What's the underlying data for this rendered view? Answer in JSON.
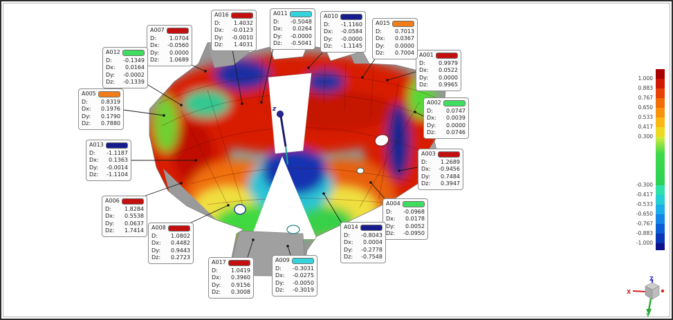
{
  "fields": {
    "d": "D:",
    "dx": "Dx:",
    "dy": "Dy:",
    "dz": "Dz:"
  },
  "swatch_colors": {
    "high_pos": "#c40f0f",
    "mid_pos": "#f07d1a",
    "in_tol": "#3fde5f",
    "mid_neg": "#35d3dc",
    "high_neg": "#161c8e"
  },
  "annotations": [
    {
      "id": "A001",
      "color": "#c40f0f",
      "d": "0.9979",
      "dx": "0.0522",
      "dy": "0.0000",
      "dz": "0.9965"
    },
    {
      "id": "A002",
      "color": "#3fde5f",
      "d": "0.0747",
      "dx": "0.0039",
      "dy": "0.0000",
      "dz": "0.0746"
    },
    {
      "id": "A003",
      "color": "#c40f0f",
      "d": "1.2689",
      "dx": "-0.9456",
      "dy": "0.7484",
      "dz": "0.3947"
    },
    {
      "id": "A004",
      "color": "#3fde5f",
      "d": "-0.0968",
      "dx": "0.0178",
      "dy": "0.0052",
      "dz": "-0.0950"
    },
    {
      "id": "A005",
      "color": "#f07d1a",
      "d": "0.8319",
      "dx": "0.1976",
      "dy": "0.1790",
      "dz": "0.7880"
    },
    {
      "id": "A006",
      "color": "#c40f0f",
      "d": "1.8284",
      "dx": "0.5538",
      "dy": "0.0637",
      "dz": "1.7414"
    },
    {
      "id": "A007",
      "color": "#c40f0f",
      "d": "1.0704",
      "dx": "-0.0560",
      "dy": "0.0000",
      "dz": "1.0689"
    },
    {
      "id": "A008",
      "color": "#c40f0f",
      "d": "1.0802",
      "dx": "0.4482",
      "dy": "0.9443",
      "dz": "0.2723"
    },
    {
      "id": "A009",
      "color": "#35d3dc",
      "d": "-0.3031",
      "dx": "-0.0275",
      "dy": "-0.0050",
      "dz": "-0.3019"
    },
    {
      "id": "A010",
      "color": "#161c8e",
      "d": "-1.1160",
      "dx": "-0.0584",
      "dy": "-0.0000",
      "dz": "-1.1145"
    },
    {
      "id": "A011",
      "color": "#35d3dc",
      "d": "-0.5048",
      "dx": "0.0264",
      "dy": "-0.0000",
      "dz": "-0.5041"
    },
    {
      "id": "A012",
      "color": "#3fde5f",
      "d": "-0.1349",
      "dx": "0.0164",
      "dy": "-0.0002",
      "dz": "-0.1339"
    },
    {
      "id": "A013",
      "color": "#161c8e",
      "d": "-1.1187",
      "dx": "0.1363",
      "dy": "-0.0014",
      "dz": "-1.1104"
    },
    {
      "id": "A014",
      "color": "#161c8e",
      "d": "-0.8043",
      "dx": "0.0004",
      "dy": "-0.2778",
      "dz": "-0.7548"
    },
    {
      "id": "A015",
      "color": "#f07d1a",
      "d": "0.7013",
      "dx": "0.0367",
      "dy": "0.0000",
      "dz": "0.7004"
    },
    {
      "id": "A016",
      "color": "#c40f0f",
      "d": "1.4032",
      "dx": "-0.0123",
      "dy": "-0.0010",
      "dz": "1.4031"
    },
    {
      "id": "A017",
      "color": "#c40f0f",
      "d": "1.0419",
      "dx": "0.3960",
      "dy": "0.9156",
      "dz": "0.3008"
    }
  ],
  "colorbar": {
    "labels": [
      "1.000",
      "0.883",
      "0.767",
      "0.650",
      "0.533",
      "0.417",
      "0.300",
      "-0.300",
      "-0.417",
      "-0.533",
      "-0.650",
      "-0.767",
      "-0.883",
      "-1.000"
    ],
    "colors": [
      "#a80000",
      "#d01902",
      "#e64206",
      "#f26c08",
      "#f9930e",
      "#fbb713",
      "#eed921",
      "linear-gradient(#d4ec3c,#3fd94a 35%,#2bd154)",
      "#2fe0a8",
      "#25cfd4",
      "#1caee8",
      "#1386e6",
      "#0c5cd4",
      "#0837b6",
      "#0d128a"
    ]
  },
  "triad": {
    "x": "X",
    "y": "Y",
    "z": "Z"
  },
  "model": {
    "pin_label": "z"
  }
}
